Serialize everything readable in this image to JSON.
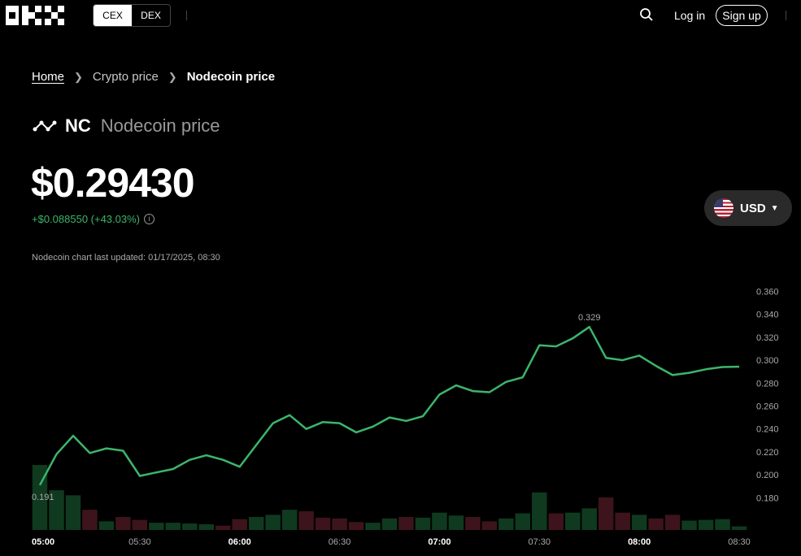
{
  "header": {
    "logo": "OKX",
    "tabs": [
      "CEX",
      "DEX"
    ],
    "login": "Log in",
    "signup": "Sign up"
  },
  "breadcrumb": {
    "home": "Home",
    "section": "Crypto price",
    "current": "Nodecoin price"
  },
  "coin": {
    "symbol": "NC",
    "name": "Nodecoin price",
    "price": "$0.29430",
    "change": "+$0.088550 (+43.03%)",
    "updated": "Nodecoin chart last updated: 01/17/2025, 08:30",
    "currency": "USD"
  },
  "colors": {
    "up": "#3cb56b",
    "down": "#e25555"
  },
  "chart_data": {
    "type": "line",
    "x": [
      "05:00",
      "05:05",
      "05:10",
      "05:15",
      "05:20",
      "05:25",
      "05:30",
      "05:35",
      "05:40",
      "05:45",
      "05:50",
      "05:55",
      "06:00",
      "06:05",
      "06:10",
      "06:15",
      "06:20",
      "06:25",
      "06:30",
      "06:35",
      "06:40",
      "06:45",
      "06:50",
      "06:55",
      "07:00",
      "07:05",
      "07:10",
      "07:15",
      "07:20",
      "07:25",
      "07:30",
      "07:35",
      "07:40",
      "07:45",
      "07:50",
      "07:55",
      "08:00",
      "08:05",
      "08:10",
      "08:15",
      "08:20",
      "08:25",
      "08:30"
    ],
    "y": [
      0.191,
      0.218,
      0.234,
      0.219,
      0.223,
      0.221,
      0.199,
      0.202,
      0.205,
      0.213,
      0.217,
      0.213,
      0.207,
      0.226,
      0.245,
      0.252,
      0.24,
      0.246,
      0.245,
      0.237,
      0.242,
      0.25,
      0.247,
      0.251,
      0.27,
      0.278,
      0.273,
      0.272,
      0.281,
      0.285,
      0.313,
      0.312,
      0.319,
      0.329,
      0.302,
      0.3,
      0.304,
      0.295,
      0.287,
      0.289,
      0.292,
      0.294,
      0.2943
    ],
    "volume": [
      9,
      5.5,
      4.8,
      2.8,
      1.2,
      1.8,
      1.4,
      1,
      1,
      0.9,
      0.8,
      0.6,
      1.5,
      1.8,
      2.1,
      2.8,
      2.6,
      1.7,
      1.6,
      1.1,
      1,
      1.6,
      1.8,
      1.7,
      2.4,
      2,
      1.8,
      1.2,
      1.6,
      2.3,
      5.2,
      2.3,
      2.4,
      3,
      4.5,
      2.4,
      2.1,
      1.6,
      2.1,
      1.3,
      1.4,
      1.5,
      0.5
    ],
    "volume_up": [
      true,
      true,
      true,
      false,
      true,
      false,
      false,
      true,
      true,
      true,
      true,
      false,
      false,
      true,
      true,
      true,
      false,
      false,
      false,
      false,
      true,
      true,
      false,
      true,
      true,
      true,
      false,
      false,
      true,
      true,
      true,
      false,
      true,
      true,
      false,
      false,
      true,
      false,
      false,
      true,
      true,
      true,
      true
    ],
    "ylim": [
      0.166,
      0.366
    ],
    "yticks": [
      "0.360",
      "0.340",
      "0.320",
      "0.300",
      "0.280",
      "0.260",
      "0.240",
      "0.220",
      "0.200",
      "0.180"
    ],
    "xticks": [
      "05:00",
      "05:30",
      "06:00",
      "06:30",
      "07:00",
      "07:30",
      "08:00",
      "08:30"
    ],
    "xticks_bold": [
      "05:00",
      "06:00",
      "07:00",
      "08:00"
    ],
    "annotations": {
      "min": "0.191",
      "max": "0.329"
    }
  }
}
